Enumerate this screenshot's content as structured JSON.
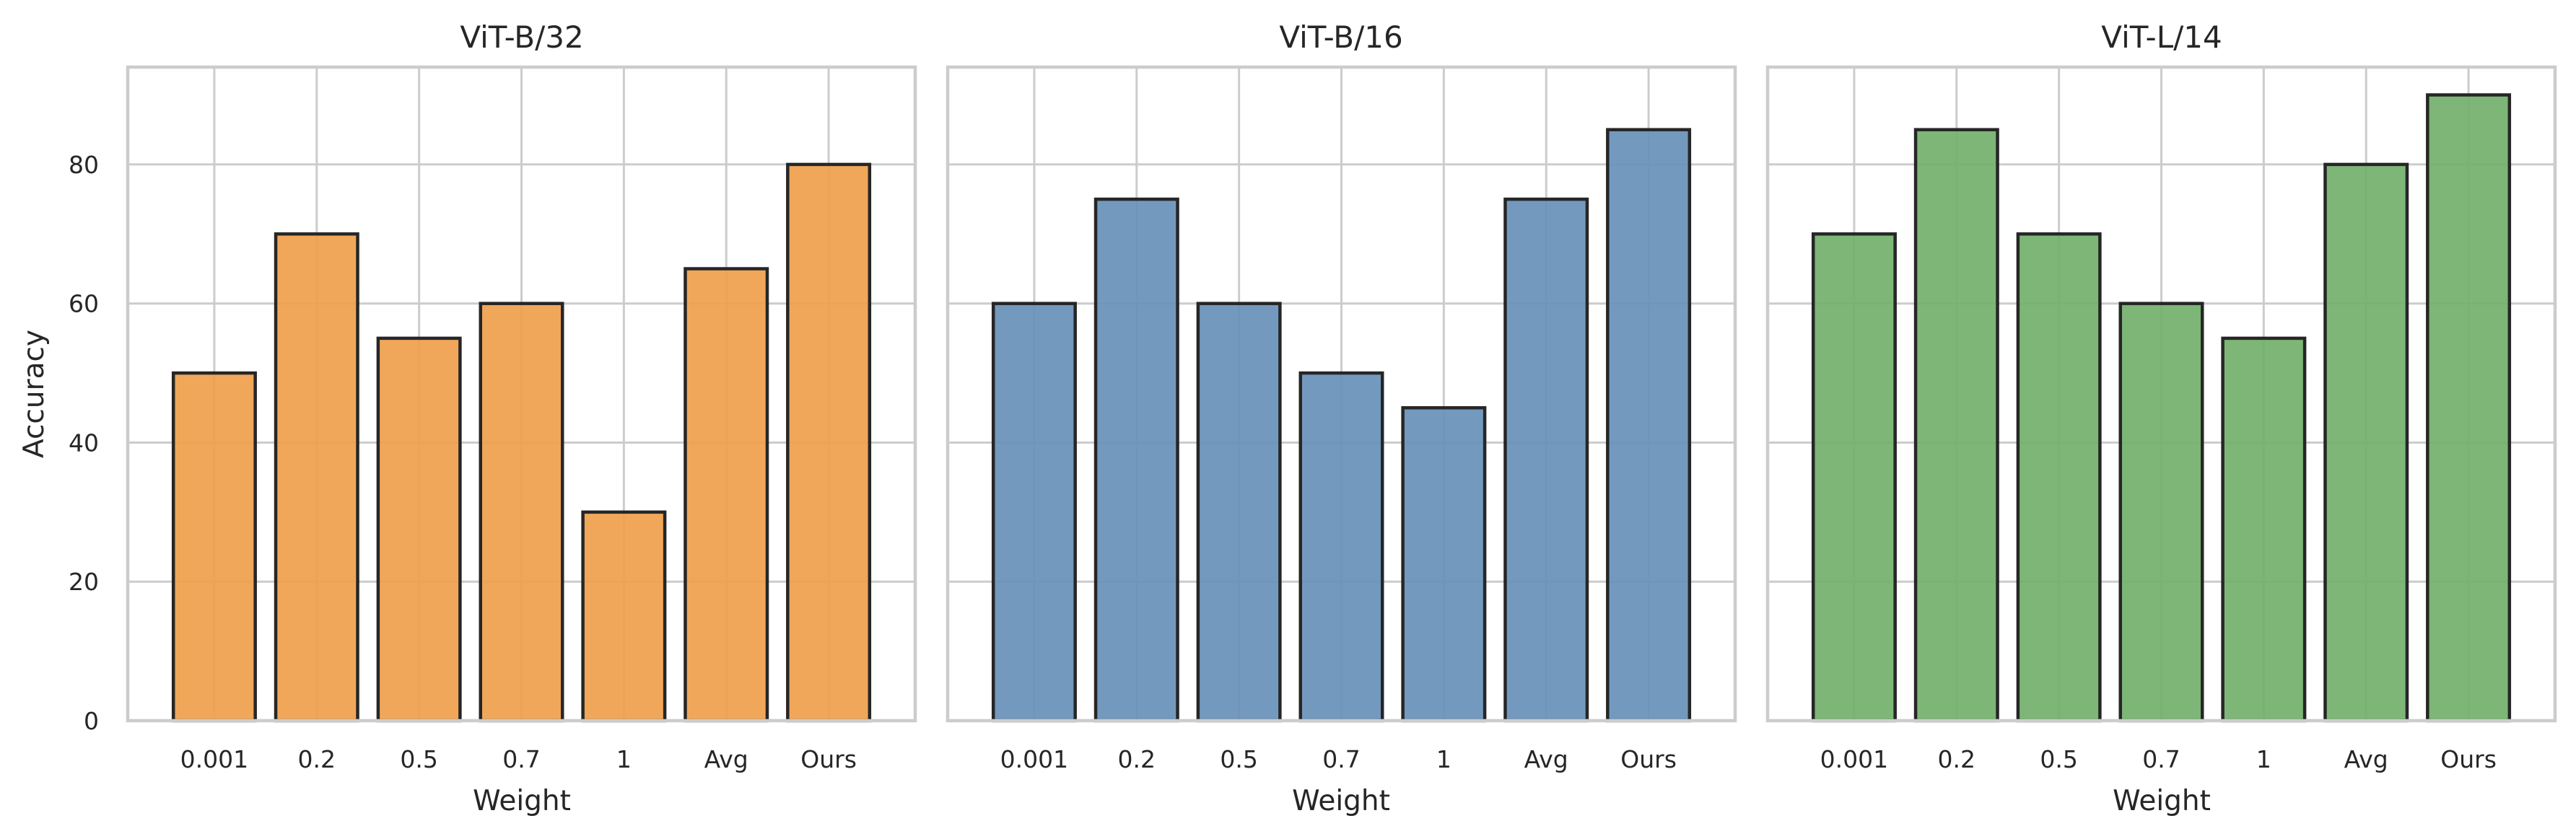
{
  "chart_data": [
    {
      "type": "bar",
      "title": "ViT-B/32",
      "xlabel": "Weight",
      "ylabel": "Accuracy",
      "categories": [
        "0.001",
        "0.2",
        "0.5",
        "0.7",
        "1",
        "Avg",
        "Ours"
      ],
      "values": [
        50,
        70,
        55,
        60,
        30,
        65,
        80
      ],
      "color": "#f0a04b",
      "ylim": [
        0,
        94
      ],
      "yticks": [
        "0",
        "20",
        "40",
        "60",
        "80"
      ],
      "grid": true
    },
    {
      "type": "bar",
      "title": "ViT-B/16",
      "xlabel": "Weight",
      "ylabel": "",
      "categories": [
        "0.001",
        "0.2",
        "0.5",
        "0.7",
        "1",
        "Avg",
        "Ours"
      ],
      "values": [
        60,
        75,
        60,
        50,
        45,
        75,
        85
      ],
      "color": "#6890b8",
      "ylim": [
        0,
        94
      ],
      "yticks": [],
      "grid": true
    },
    {
      "type": "bar",
      "title": "ViT-L/14",
      "xlabel": "Weight",
      "ylabel": "",
      "categories": [
        "0.001",
        "0.2",
        "0.5",
        "0.7",
        "1",
        "Avg",
        "Ours"
      ],
      "values": [
        70,
        85,
        70,
        60,
        55,
        80,
        90
      ],
      "color": "#72b06a",
      "ylim": [
        0,
        94
      ],
      "yticks": [],
      "grid": true
    }
  ]
}
